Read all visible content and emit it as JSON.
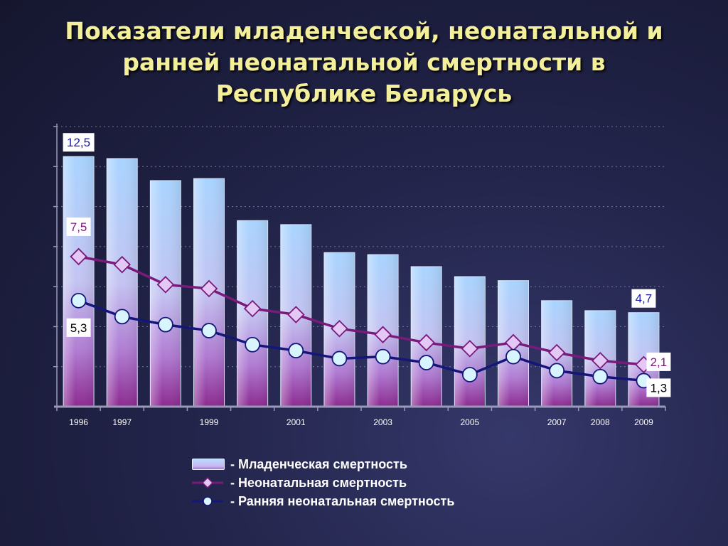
{
  "title": {
    "line1": "Показатели младенческой, неонатальной и",
    "line2": "ранней неонатальной смертности в",
    "line3": "Республике Беларусь"
  },
  "chart_data": {
    "type": "bar",
    "x_tick_labels": [
      "1996",
      "1997",
      "",
      "1999",
      "",
      "2001",
      "",
      "2003",
      "",
      "2005",
      "",
      "2007",
      "2008",
      "2009"
    ],
    "ylim": [
      0,
      14
    ],
    "grid": true,
    "series": [
      {
        "name": "Младенческая смертность",
        "type": "bar",
        "values": [
          12.5,
          12.4,
          11.3,
          11.4,
          9.3,
          9.1,
          7.7,
          7.6,
          7.0,
          6.5,
          6.3,
          5.3,
          4.8,
          4.7
        ]
      },
      {
        "name": "Неонатальная смертность",
        "type": "line",
        "values": [
          7.5,
          7.1,
          6.1,
          5.9,
          4.9,
          4.6,
          3.9,
          3.6,
          3.2,
          2.9,
          3.2,
          2.7,
          2.3,
          2.1
        ]
      },
      {
        "name": "Ранняя неонатальная смертность",
        "type": "line",
        "values": [
          5.3,
          4.5,
          4.1,
          3.8,
          3.1,
          2.8,
          2.4,
          2.5,
          2.2,
          1.6,
          2.5,
          1.8,
          1.5,
          1.3
        ]
      }
    ],
    "data_labels": [
      {
        "series": 0,
        "index": 0,
        "text": "12,5"
      },
      {
        "series": 1,
        "index": 0,
        "text": "7,5"
      },
      {
        "series": 2,
        "index": 0,
        "text": "5,3"
      },
      {
        "series": 0,
        "index": 13,
        "text": "4,7"
      },
      {
        "series": 1,
        "index": 13,
        "text": "2,1"
      },
      {
        "series": 2,
        "index": 13,
        "text": "1,3"
      }
    ],
    "legend_placement": "bottom-center",
    "colors": {
      "neonatal": "#7a1a7a",
      "early": "#14167a",
      "label_blue": "#1a1aa8",
      "label_purple": "#7a1a7a",
      "grid": "#8a8aaa",
      "axis": "#9a9ab8"
    }
  },
  "legend": [
    {
      "label": "- Младенческая смертность",
      "icon": "bar-swatch"
    },
    {
      "label": "- Неонатальная смертность",
      "icon": "diamond-marker"
    },
    {
      "label": "- Ранняя неонатальная смертность",
      "icon": "circle-marker"
    }
  ]
}
